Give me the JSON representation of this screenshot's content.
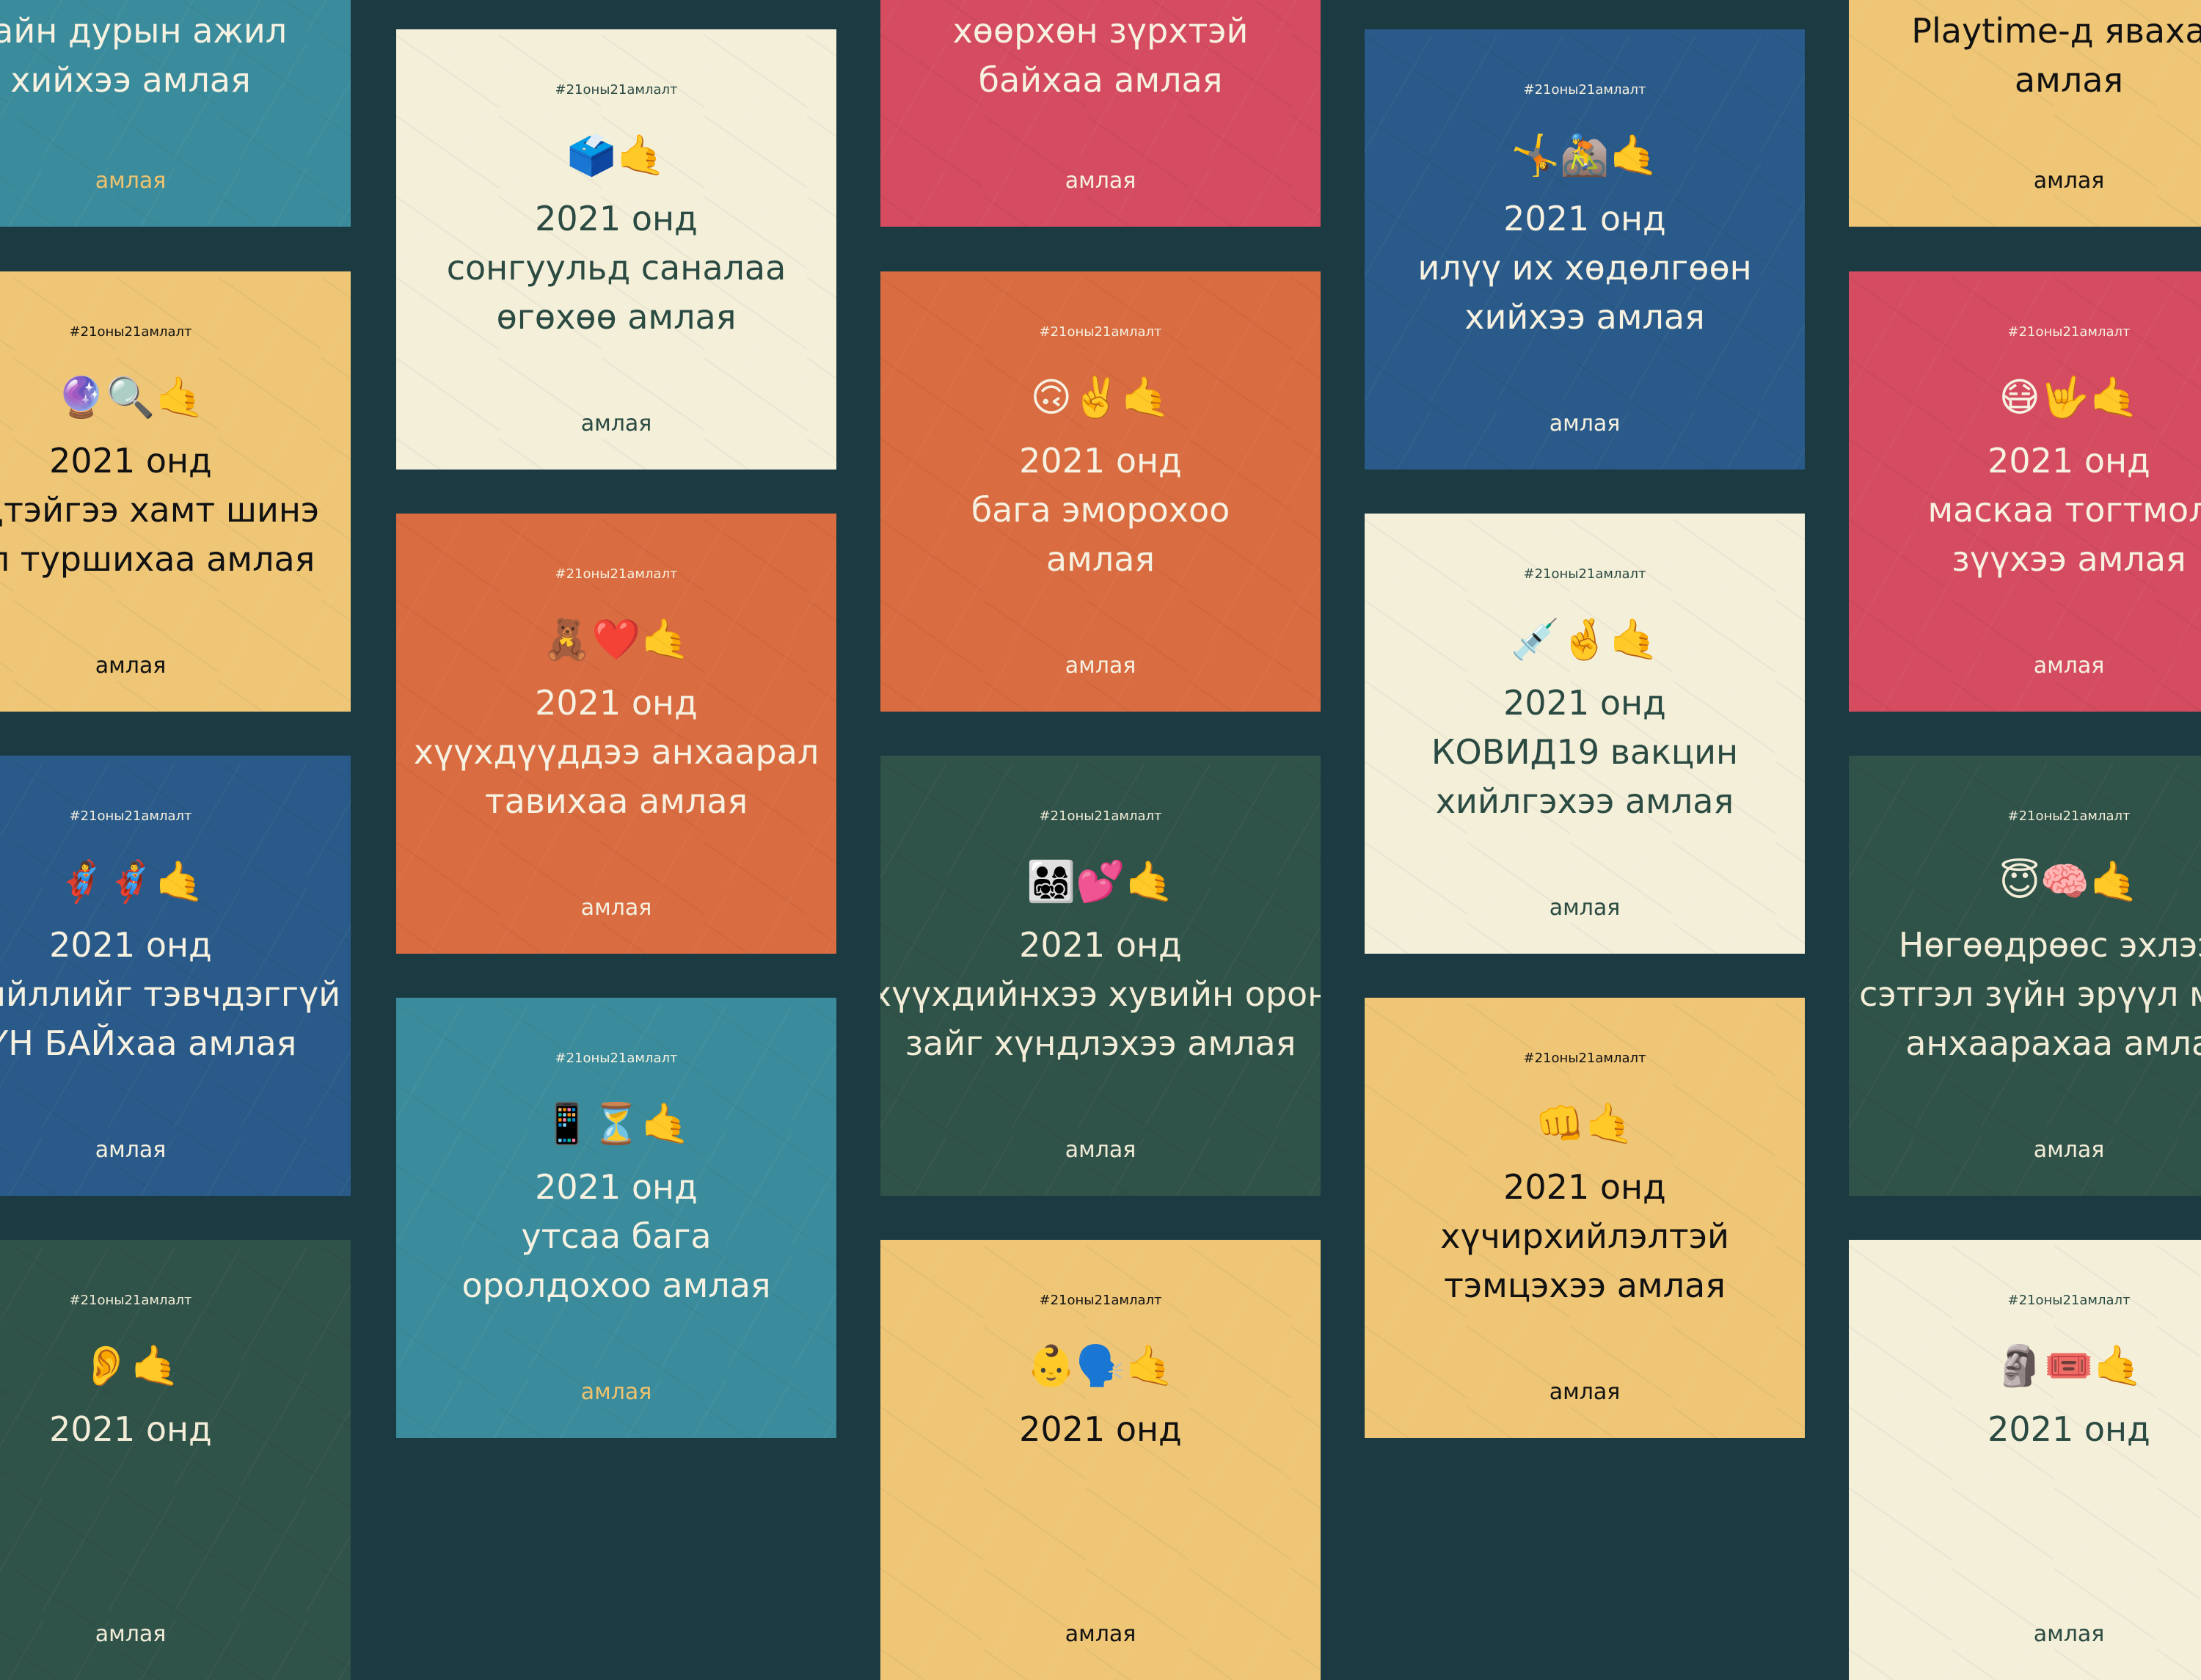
{
  "hashtag": "#21оны21амлалт",
  "footer": "амлая",
  "themes": {
    "teal": {
      "bg": "#3a8c9c",
      "fg": "#f6f1e0",
      "foot": "#f0c36e"
    },
    "cream": {
      "bg": "#f4efd9",
      "fg": "#2a4a42",
      "foot": "#2a4a42"
    },
    "red": {
      "bg": "#d54b5f",
      "fg": "#f6f1e0",
      "foot": "#f6f1e0"
    },
    "orange": {
      "bg": "#d96c41",
      "fg": "#f6f1e0",
      "foot": "#f6f1e0"
    },
    "blue": {
      "bg": "#2a5a89",
      "fg": "#f6f1e0",
      "foot": "#f6f1e0"
    },
    "yellow": {
      "bg": "#efc676",
      "fg": "#111111",
      "foot": "#111111"
    },
    "green": {
      "bg": "#2f5249",
      "fg": "#f3edd8",
      "foot": "#f3edd8"
    }
  },
  "columns": [
    [
      {
        "theme": "teal",
        "emoji": "",
        "lines": [
          "сайн дурын ажил",
          "хийхээ амлая"
        ]
      },
      {
        "theme": "yellow",
        "emoji": "🔮🔍🤙",
        "lines": [
          "2021 онд",
          "хэдтэйгээ хамт шинэ",
          "үйл туршихаа амлая"
        ]
      },
      {
        "theme": "blue",
        "emoji": "🦸‍♀️🦸‍♂️🤙",
        "lines": [
          "2021 онд",
          "ирхийллийг тэвчдэггүй",
          "ХҮН БАЙхаа амлая"
        ]
      },
      {
        "theme": "green",
        "emoji": "👂🤙",
        "lines": [
          "2021 онд"
        ]
      }
    ],
    [
      {
        "theme": "cream",
        "emoji": "🗳️🤙",
        "lines": [
          "2021 онд",
          "сонгуульд саналаа",
          "өгөхөө амлая"
        ]
      },
      {
        "theme": "orange",
        "emoji": "🧸❤️🤙",
        "lines": [
          "2021 онд",
          "хүүхдүүддээ анхаарал",
          "тавихаа амлая"
        ]
      },
      {
        "theme": "teal",
        "emoji": "📱⏳🤙",
        "lines": [
          "2021 онд",
          "утсаа бага",
          "оролдохоо амлая"
        ]
      }
    ],
    [
      {
        "theme": "red",
        "emoji": "",
        "lines": [
          "хөөрхөн зүрхтэй",
          "байхаа амлая"
        ]
      },
      {
        "theme": "orange",
        "emoji": "🙃✌️🤙",
        "lines": [
          "2021 онд",
          "бага эморохоо",
          "амлая"
        ]
      },
      {
        "theme": "green",
        "emoji": "👨‍👩‍👧‍👦💕🤙",
        "lines": [
          "2021 онд",
          "хүүхдийнхээ хувийн орон",
          "зайг хүндлэхээ амлая"
        ]
      },
      {
        "theme": "yellow",
        "emoji": "👶🗣️🤙",
        "lines": [
          "2021 онд"
        ]
      }
    ],
    [
      {
        "theme": "blue",
        "emoji": "🤸🚵🤙",
        "lines": [
          "2021 онд",
          "илүү их хөдөлгөөн",
          "хийхээ амлая"
        ]
      },
      {
        "theme": "cream",
        "emoji": "💉🤞🤙",
        "lines": [
          "2021 онд",
          "КОВИД19 вакцин",
          "хийлгэхээ амлая"
        ]
      },
      {
        "theme": "yellow",
        "emoji": "👊🤙",
        "lines": [
          "2021 онд",
          "хүчирхийлэлтэй",
          "тэмцэхээ амлая"
        ]
      }
    ],
    [
      {
        "theme": "yellow",
        "emoji": "",
        "lines": [
          "Playtime-д явахаа",
          "амлая"
        ]
      },
      {
        "theme": "red",
        "emoji": "😷🤟🤙",
        "lines": [
          "2021 онд",
          "маскаа тогтмол",
          "зүүхээ амлая"
        ]
      },
      {
        "theme": "green",
        "emoji": "😇🧠🤙",
        "lines": [
          "Нөгөөдрөөс эхлээд",
          "сэтгэл зүйн эрүүл мэнд",
          "анхаарахаа амлая"
        ]
      },
      {
        "theme": "cream",
        "emoji": "🗿🎟️🤙",
        "lines": [
          "2021 онд"
        ]
      }
    ]
  ]
}
